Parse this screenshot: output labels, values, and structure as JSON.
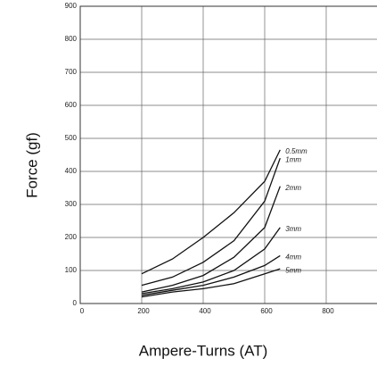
{
  "chart_data": {
    "type": "line",
    "x_label": "Ampere-Turns (AT)",
    "y_label": "Force (gf)",
    "x": [
      200,
      300,
      400,
      500,
      600,
      650
    ],
    "series": [
      {
        "name": "0.5mm",
        "color": "#111111",
        "values": [
          90,
          135,
          200,
          275,
          370,
          465
        ]
      },
      {
        "name": "1mm",
        "color": "#111111",
        "values": [
          55,
          80,
          125,
          190,
          310,
          440
        ]
      },
      {
        "name": "2mm",
        "color": "#111111",
        "values": [
          35,
          55,
          85,
          140,
          230,
          355
        ]
      },
      {
        "name": "3mm",
        "color": "#111111",
        "values": [
          30,
          45,
          65,
          100,
          165,
          230
        ]
      },
      {
        "name": "4mm",
        "color": "#111111",
        "values": [
          25,
          40,
          55,
          80,
          115,
          145
        ]
      },
      {
        "name": "5mm",
        "color": "#111111",
        "values": [
          20,
          35,
          45,
          60,
          90,
          105
        ]
      }
    ],
    "xlim": [
      0,
      1000
    ],
    "xticks": [
      0,
      200,
      400,
      600,
      800,
      1000
    ],
    "ylim": [
      0,
      900
    ],
    "yticks": [
      0,
      100,
      200,
      300,
      400,
      500,
      600,
      700,
      800,
      900
    ],
    "grid": true
  }
}
